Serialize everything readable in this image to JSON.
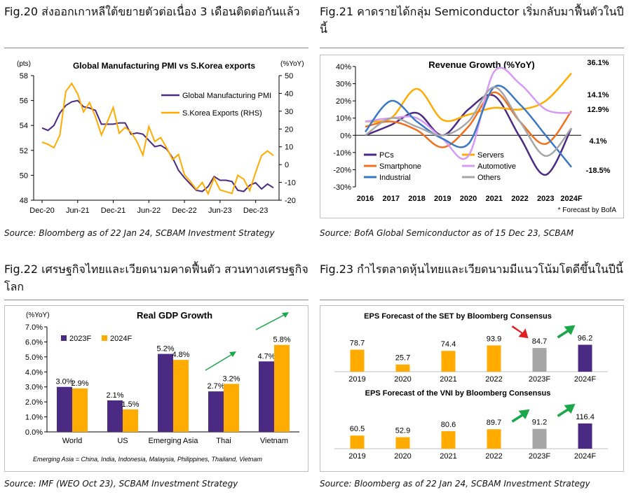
{
  "fig20": {
    "title": "Fig.20 ส่งออกเกาหลีใต้ขยายตัวต่อเนื่อง 3 เดือนติดต่อกันแล้ว",
    "source": "Source: Bloomberg as of 22 Jan 24, SCBAM Investment Strategy"
  },
  "fig21": {
    "title": "Fig.21 คาดรายได้กลุ่ม Semiconductor เริ่มกลับมาฟื้นตัวในปีนี้",
    "source": "Source: BofA Global Semiconductor as of 15 Dec 23, SCBAM",
    "footnote": "* Forecast by BofA"
  },
  "fig22": {
    "title": "Fig.22 เศรษฐกิจไทยและเวียดนามคาดฟื้นตัว สวนทางเศรษฐกิจโลก",
    "source": "Source: IMF (WEO Oct 23), SCBAM Investment Strategy",
    "footnote": "Emerging Asia = China, India, Indonesia, Malaysia, Philippines, Thailand, Vietnam"
  },
  "fig23": {
    "title": "Fig.23 กำไรตลาดหุ้นไทยและเวียดนามมีแนวโน้มโตดีขึ้นในปีนี้",
    "source": "Source: Bloomberg as of 22 Jan 24, SCBAM Investment Strategy"
  },
  "colors": {
    "purple": "#4b2a83",
    "orange": "#ffab00",
    "gray": "#a6a6a6",
    "blue": "#3b78c4",
    "lightpurple": "#d59bf4",
    "darkorange": "#f0701e",
    "red": "#e02020",
    "green": "#1aa84a"
  },
  "chart_data": [
    {
      "id": "fig20",
      "type": "line",
      "title": "Global Manufacturing PMI vs S.Korea exports",
      "ylabel": "(pts)",
      "y2label": "(%YoY)",
      "ylim": [
        48,
        58
      ],
      "yticks": [
        48,
        50,
        52,
        54,
        56,
        58
      ],
      "y2lim": [
        -20,
        50
      ],
      "y2ticks": [
        -20,
        -10,
        0,
        10,
        20,
        30,
        40,
        50
      ],
      "xticks": [
        "Dec-20",
        "Jun-21",
        "Dec-21",
        "Jun-22",
        "Dec-22",
        "Jun-23",
        "Dec-23"
      ],
      "legend_position": "top-right",
      "series": [
        {
          "name": "Global Manufacturing PMI",
          "axis": "left",
          "values": [
            53.8,
            53.6,
            54.0,
            55.0,
            55.6,
            55.9,
            56.0,
            55.5,
            55.4,
            55.2,
            54.1,
            54.1,
            54.1,
            54.2,
            54.2,
            53.3,
            53.4,
            53.3,
            52.8,
            52.3,
            52.4,
            52.1,
            51.4,
            50.4,
            49.8,
            49.3,
            48.8,
            48.7,
            49.1,
            49.9,
            49.6,
            49.6,
            49.5,
            48.8,
            48.7,
            49.2,
            49.4,
            48.9,
            49.3,
            49.0
          ]
        },
        {
          "name": "S.Korea Exports (RHS)",
          "axis": "right",
          "values": [
            12.6,
            11.4,
            9.5,
            16.6,
            41.1,
            45.6,
            39.7,
            29.6,
            34.9,
            26.8,
            16.7,
            24.0,
            32.1,
            17.6,
            20.9,
            18.2,
            12.9,
            5.3,
            21.4,
            13.0,
            15.2,
            9.4,
            2.8,
            5.7,
            -5.7,
            -9.5,
            -14.0,
            -10.1,
            -16.4,
            -7.5,
            -14.2,
            -15.2,
            -16.2,
            -6.0,
            -8.2,
            -14.6,
            -4.4,
            5.1,
            7.7,
            5.1
          ]
        }
      ]
    },
    {
      "id": "fig21",
      "type": "line",
      "title": "Revenue Growth (%YoY)",
      "ylim": [
        -30,
        40
      ],
      "yticks": [
        "-30%",
        "-20%",
        "-10%",
        "0%",
        "10%",
        "20%",
        "30%",
        "40%"
      ],
      "categories": [
        "2016",
        "2017",
        "2018",
        "2019",
        "2020",
        "2021",
        "2022",
        "2023",
        "2024F"
      ],
      "legend_position": "bottom",
      "series": [
        {
          "name": "PCs",
          "values": [
            0,
            6,
            13,
            0,
            15,
            23,
            -1,
            -23,
            4.1
          ]
        },
        {
          "name": "Servers",
          "values": [
            8,
            10,
            27,
            9,
            12,
            16,
            15,
            20,
            36.1
          ]
        },
        {
          "name": "Smartphone",
          "values": [
            5,
            8,
            3,
            -7,
            5,
            25,
            8,
            -5,
            14.1
          ]
        },
        {
          "name": "Automotive",
          "values": [
            8,
            10,
            10,
            -2,
            -12,
            37,
            30,
            15,
            12.9
          ]
        },
        {
          "name": "Industrial",
          "values": [
            2,
            20,
            8,
            -2,
            -5,
            28,
            18,
            0,
            -18.5
          ]
        },
        {
          "name": "Others",
          "values": [
            0,
            10,
            5,
            0,
            8,
            28,
            8,
            -12,
            4.1
          ]
        }
      ],
      "data_labels": [
        "36.1%",
        "14.1%",
        "12.9%",
        "4.1%",
        "-18.5%"
      ]
    },
    {
      "id": "fig22",
      "type": "bar",
      "title": "Real GDP Growth",
      "ylabel": "(%YoY)",
      "ylim": [
        0,
        7
      ],
      "yticks": [
        "0.0%",
        "1.0%",
        "2.0%",
        "3.0%",
        "4.0%",
        "5.0%",
        "6.0%",
        "7.0%"
      ],
      "categories": [
        "World",
        "US",
        "Emerging Asia",
        "Thai",
        "Vietnam"
      ],
      "legend_position": "top-left",
      "series": [
        {
          "name": "2023F",
          "values": [
            3.0,
            2.1,
            5.2,
            2.7,
            4.7
          ],
          "labels": [
            "3.0%",
            "2.1%",
            "5.2%",
            "2.7%",
            "4.7%"
          ]
        },
        {
          "name": "2024F",
          "values": [
            2.9,
            1.5,
            4.8,
            3.2,
            5.8
          ],
          "labels": [
            "2.9%",
            "1.5%",
            "4.8%",
            "3.2%",
            "5.8%"
          ]
        }
      ]
    },
    {
      "id": "fig23-set",
      "type": "bar",
      "title": "EPS Forecast of the SET by Bloomberg Consensus",
      "categories": [
        "2019",
        "2020",
        "2021",
        "2022",
        "2023F",
        "2024F"
      ],
      "values": [
        78.7,
        25.7,
        74.4,
        93.9,
        84.7,
        96.2
      ],
      "labels": [
        "78.7",
        "25.7",
        "74.4",
        "93.9",
        "84.7",
        "96.2"
      ],
      "colors": [
        "orange",
        "orange",
        "orange",
        "orange",
        "gray",
        "purple"
      ],
      "arrows": [
        {
          "at": "2023F",
          "direction": "down",
          "color": "red"
        },
        {
          "at": "2024F",
          "direction": "up",
          "color": "green"
        }
      ]
    },
    {
      "id": "fig23-vni",
      "type": "bar",
      "title": "EPS Forecast of the VNI by Bloomberg Consensus",
      "categories": [
        "2019",
        "2020",
        "2021",
        "2022",
        "2023F",
        "2024F"
      ],
      "values": [
        60.5,
        52.9,
        80.6,
        89.7,
        91.2,
        116.4
      ],
      "labels": [
        "60.5",
        "52.9",
        "80.6",
        "89.7",
        "91.2",
        "116.4"
      ],
      "colors": [
        "orange",
        "orange",
        "orange",
        "orange",
        "gray",
        "purple"
      ],
      "arrows": [
        {
          "at": "2023F",
          "direction": "up",
          "color": "green"
        },
        {
          "at": "2024F",
          "direction": "up",
          "color": "green"
        }
      ]
    }
  ]
}
